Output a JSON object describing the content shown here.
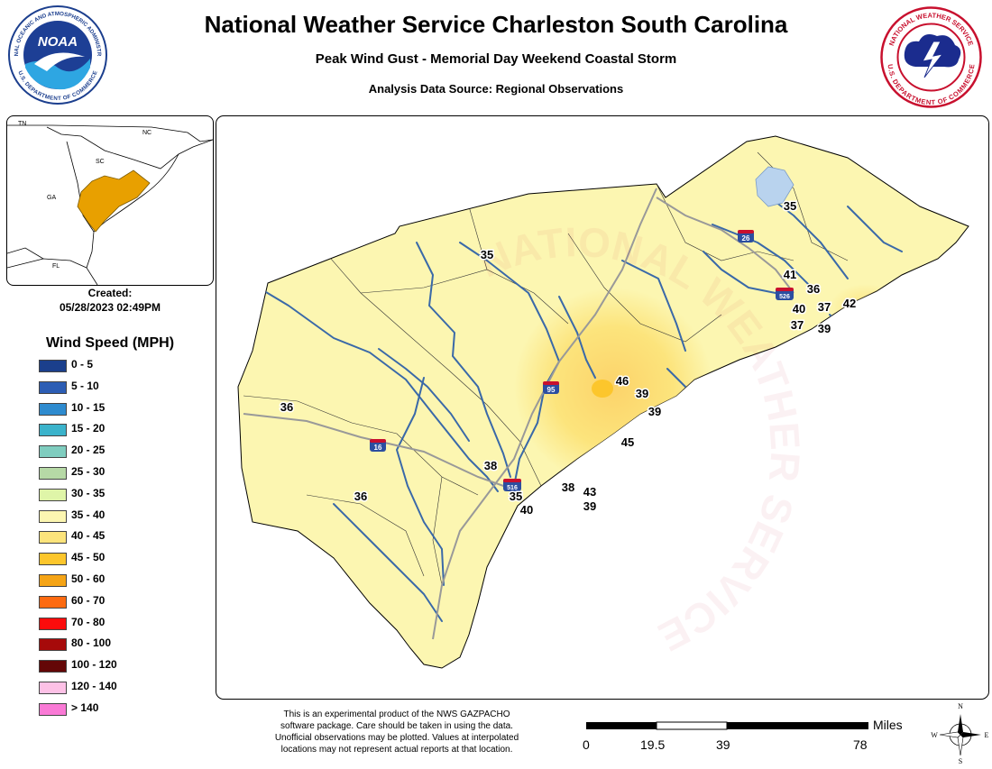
{
  "header": {
    "title": "National Weather Service Charleston South Carolina",
    "subtitle": "Peak Wind Gust - Memorial Day Weekend Coastal Storm",
    "source": "Analysis Data Source: Regional Observations"
  },
  "logos": {
    "noaa": {
      "text": "NOAA",
      "ring_top": "NATIONAL OCEANIC AND ATMOSPHERIC ADMINISTRATION",
      "ring_bottom": "U.S. DEPARTMENT OF COMMERCE"
    },
    "nws": {
      "ring_top": "NATIONAL WEATHER SERVICE",
      "ring_bottom": "U.S. DEPARTMENT OF COMMERCE"
    }
  },
  "inset_map": {
    "state_labels": [
      "TN",
      "NC",
      "SC",
      "GA",
      "FL"
    ],
    "highlight_color": "#e8a000"
  },
  "created": {
    "label": "Created:",
    "value": "05/28/2023 02:49PM"
  },
  "legend": {
    "title": "Wind Speed (MPH)",
    "items": [
      {
        "label": "0 - 5",
        "color": "#1b3f8c"
      },
      {
        "label": "5 - 10",
        "color": "#2c5db4"
      },
      {
        "label": "10 - 15",
        "color": "#2e8bcf"
      },
      {
        "label": "15 - 20",
        "color": "#3bb3cb"
      },
      {
        "label": "20 - 25",
        "color": "#7fcdbf"
      },
      {
        "label": "25 - 30",
        "color": "#b6d9a6"
      },
      {
        "label": "30 - 35",
        "color": "#dff5a8"
      },
      {
        "label": "35 - 40",
        "color": "#fcf6b1"
      },
      {
        "label": "40 - 45",
        "color": "#fce47c"
      },
      {
        "label": "45 - 50",
        "color": "#fcc62c"
      },
      {
        "label": "50 - 60",
        "color": "#f5a416"
      },
      {
        "label": "60 - 70",
        "color": "#fd6a10"
      },
      {
        "label": "70 - 80",
        "color": "#fc0c0c"
      },
      {
        "label": "80 - 100",
        "color": "#a60a0a"
      },
      {
        "label": "100 - 120",
        "color": "#640707"
      },
      {
        "label": "120 - 140",
        "color": "#fdc1e6"
      },
      {
        "label": "> 140",
        "color": "#fa7ad6"
      }
    ]
  },
  "map": {
    "watermark_text": "NATIONAL WEATHER SERVICE · DEPARTMENT OF COMMERCE",
    "interstates": [
      "26",
      "526",
      "95",
      "16",
      "516"
    ],
    "observations": [
      {
        "value": "35"
      },
      {
        "value": "35"
      },
      {
        "value": "41"
      },
      {
        "value": "36"
      },
      {
        "value": "40"
      },
      {
        "value": "37"
      },
      {
        "value": "42"
      },
      {
        "value": "37"
      },
      {
        "value": "39"
      },
      {
        "value": "46"
      },
      {
        "value": "39"
      },
      {
        "value": "39"
      },
      {
        "value": "45"
      },
      {
        "value": "36"
      },
      {
        "value": "38"
      },
      {
        "value": "35"
      },
      {
        "value": "38"
      },
      {
        "value": "43"
      },
      {
        "value": "40"
      },
      {
        "value": "39"
      },
      {
        "value": "36"
      }
    ]
  },
  "footer": {
    "disclaimer": [
      "This is an experimental product of the NWS GAZPACHO",
      "software package. Care should be taken in using the data.",
      "Unofficial observations may be plotted. Values at interpolated",
      "locations may not represent actual reports at that location."
    ],
    "scale": {
      "unit": "Miles",
      "ticks": [
        "0",
        "19.5",
        "39",
        "78"
      ]
    },
    "compass": [
      "N",
      "E",
      "S",
      "W"
    ]
  }
}
